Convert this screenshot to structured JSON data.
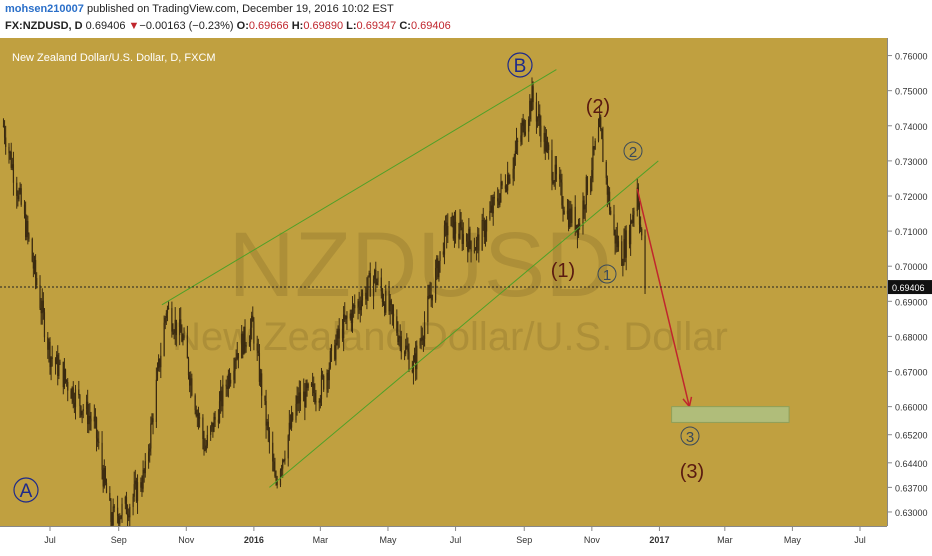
{
  "header": {
    "author": "mohsen210007",
    "published_text": "published on TradingView.com, December 19, 2016 10:02 EST",
    "symbol": "FX:NZDUSD, D",
    "price": "0.69406",
    "change_arrow": "▼",
    "change": "−0.00163 (−0.23%)",
    "o_label": "O:",
    "o_value": "0.69666",
    "h_label": "H:",
    "h_value": "0.69890",
    "l_label": "L:",
    "l_value": "0.69347",
    "c_label": "C:",
    "c_value": "0.69406"
  },
  "chart_title": "New Zealand Dollar/U.S. Dollar, D, FXCM",
  "watermark": {
    "symbol": "NZDUSD",
    "name": "New Zealand Dollar/U.S. Dollar"
  },
  "current_price_label": "0.69406",
  "wave_labels": {
    "A": "A",
    "B": "B",
    "w1": "(1)",
    "w2": "(2)",
    "w3": "(3)",
    "c1": "1",
    "c2": "2",
    "c3": "3"
  },
  "colors": {
    "background": "#c0a040",
    "candle": "#3a2a10",
    "channel": "#4fa028",
    "arrow": "#c0262d",
    "target_box_fill": "#b0bd7a",
    "target_box_stroke": "#8ea05a",
    "wave_circle_blue": "#1e2a8a",
    "wave_paren": "#5a1a10",
    "wave_small_circle": "#3a4a5a"
  },
  "chart_data": {
    "type": "candlestick",
    "symbol": "NZDUSD",
    "timeframe": "D",
    "ylim": [
      0.626,
      0.765
    ],
    "y_ticks": [
      0.76,
      0.75,
      0.74,
      0.73,
      0.72,
      0.71,
      0.7,
      0.69,
      0.68,
      0.67,
      0.66,
      0.652,
      0.644,
      0.637,
      0.63
    ],
    "y_tick_labels": [
      "0.76000",
      "0.75000",
      "0.74000",
      "0.73000",
      "0.72000",
      "0.71000",
      "0.70000",
      "0.69000",
      "0.68000",
      "0.67000",
      "0.66000",
      "0.65200",
      "0.64400",
      "0.63700",
      "0.63000"
    ],
    "x_ticks": [
      "Jul",
      "Sep",
      "Nov",
      "2016",
      "Mar",
      "May",
      "Jul",
      "Sep",
      "Nov",
      "2017",
      "Mar",
      "May",
      "Jul"
    ],
    "x_tick_dates": [
      "2015-07-01",
      "2015-09-01",
      "2015-11-01",
      "2016-01-01",
      "2016-03-01",
      "2016-05-01",
      "2016-07-01",
      "2016-09-01",
      "2016-11-01",
      "2017-01-01",
      "2017-03-01",
      "2017-05-01",
      "2017-07-01"
    ],
    "price_path": [
      [
        "2015-05-20",
        0.74
      ],
      [
        "2015-06-10",
        0.71
      ],
      [
        "2015-07-01",
        0.675
      ],
      [
        "2015-07-20",
        0.665
      ],
      [
        "2015-08-10",
        0.655
      ],
      [
        "2015-08-25",
        0.628
      ],
      [
        "2015-09-10",
        0.632
      ],
      [
        "2015-09-25",
        0.641
      ],
      [
        "2015-10-14",
        0.688
      ],
      [
        "2015-10-28",
        0.68
      ],
      [
        "2015-11-18",
        0.648
      ],
      [
        "2015-12-01",
        0.66
      ],
      [
        "2015-12-15",
        0.675
      ],
      [
        "2015-12-31",
        0.683
      ],
      [
        "2016-01-20",
        0.638
      ],
      [
        "2016-02-10",
        0.662
      ],
      [
        "2016-03-01",
        0.665
      ],
      [
        "2016-03-20",
        0.682
      ],
      [
        "2016-04-19",
        0.697
      ],
      [
        "2016-05-24",
        0.671
      ],
      [
        "2016-06-24",
        0.712
      ],
      [
        "2016-07-20",
        0.706
      ],
      [
        "2016-08-20",
        0.728
      ],
      [
        "2016-09-08",
        0.748
      ],
      [
        "2016-09-25",
        0.729
      ],
      [
        "2016-10-10",
        0.715
      ],
      [
        "2016-10-20",
        0.712
      ],
      [
        "2016-11-08",
        0.739
      ],
      [
        "2016-11-20",
        0.71
      ],
      [
        "2016-11-28",
        0.703
      ],
      [
        "2016-12-05",
        0.71
      ],
      [
        "2016-12-12",
        0.723
      ],
      [
        "2016-12-19",
        0.69406
      ]
    ],
    "annotations": [
      {
        "type": "channel_line",
        "from": [
          "2015-10-10",
          0.689
        ],
        "to": [
          "2016-09-30",
          0.756
        ]
      },
      {
        "type": "channel_line",
        "from": [
          "2016-01-15",
          0.637
        ],
        "to": [
          "2016-12-31",
          0.73
        ]
      },
      {
        "type": "arrow",
        "from": [
          "2016-12-12",
          0.722
        ],
        "to": [
          "2017-01-28",
          0.66
        ]
      },
      {
        "type": "target_zone",
        "x0": "2017-01-12",
        "x1": "2017-04-28",
        "y0": 0.6555,
        "y1": 0.66
      },
      {
        "type": "hline",
        "y": 0.69406
      }
    ]
  }
}
